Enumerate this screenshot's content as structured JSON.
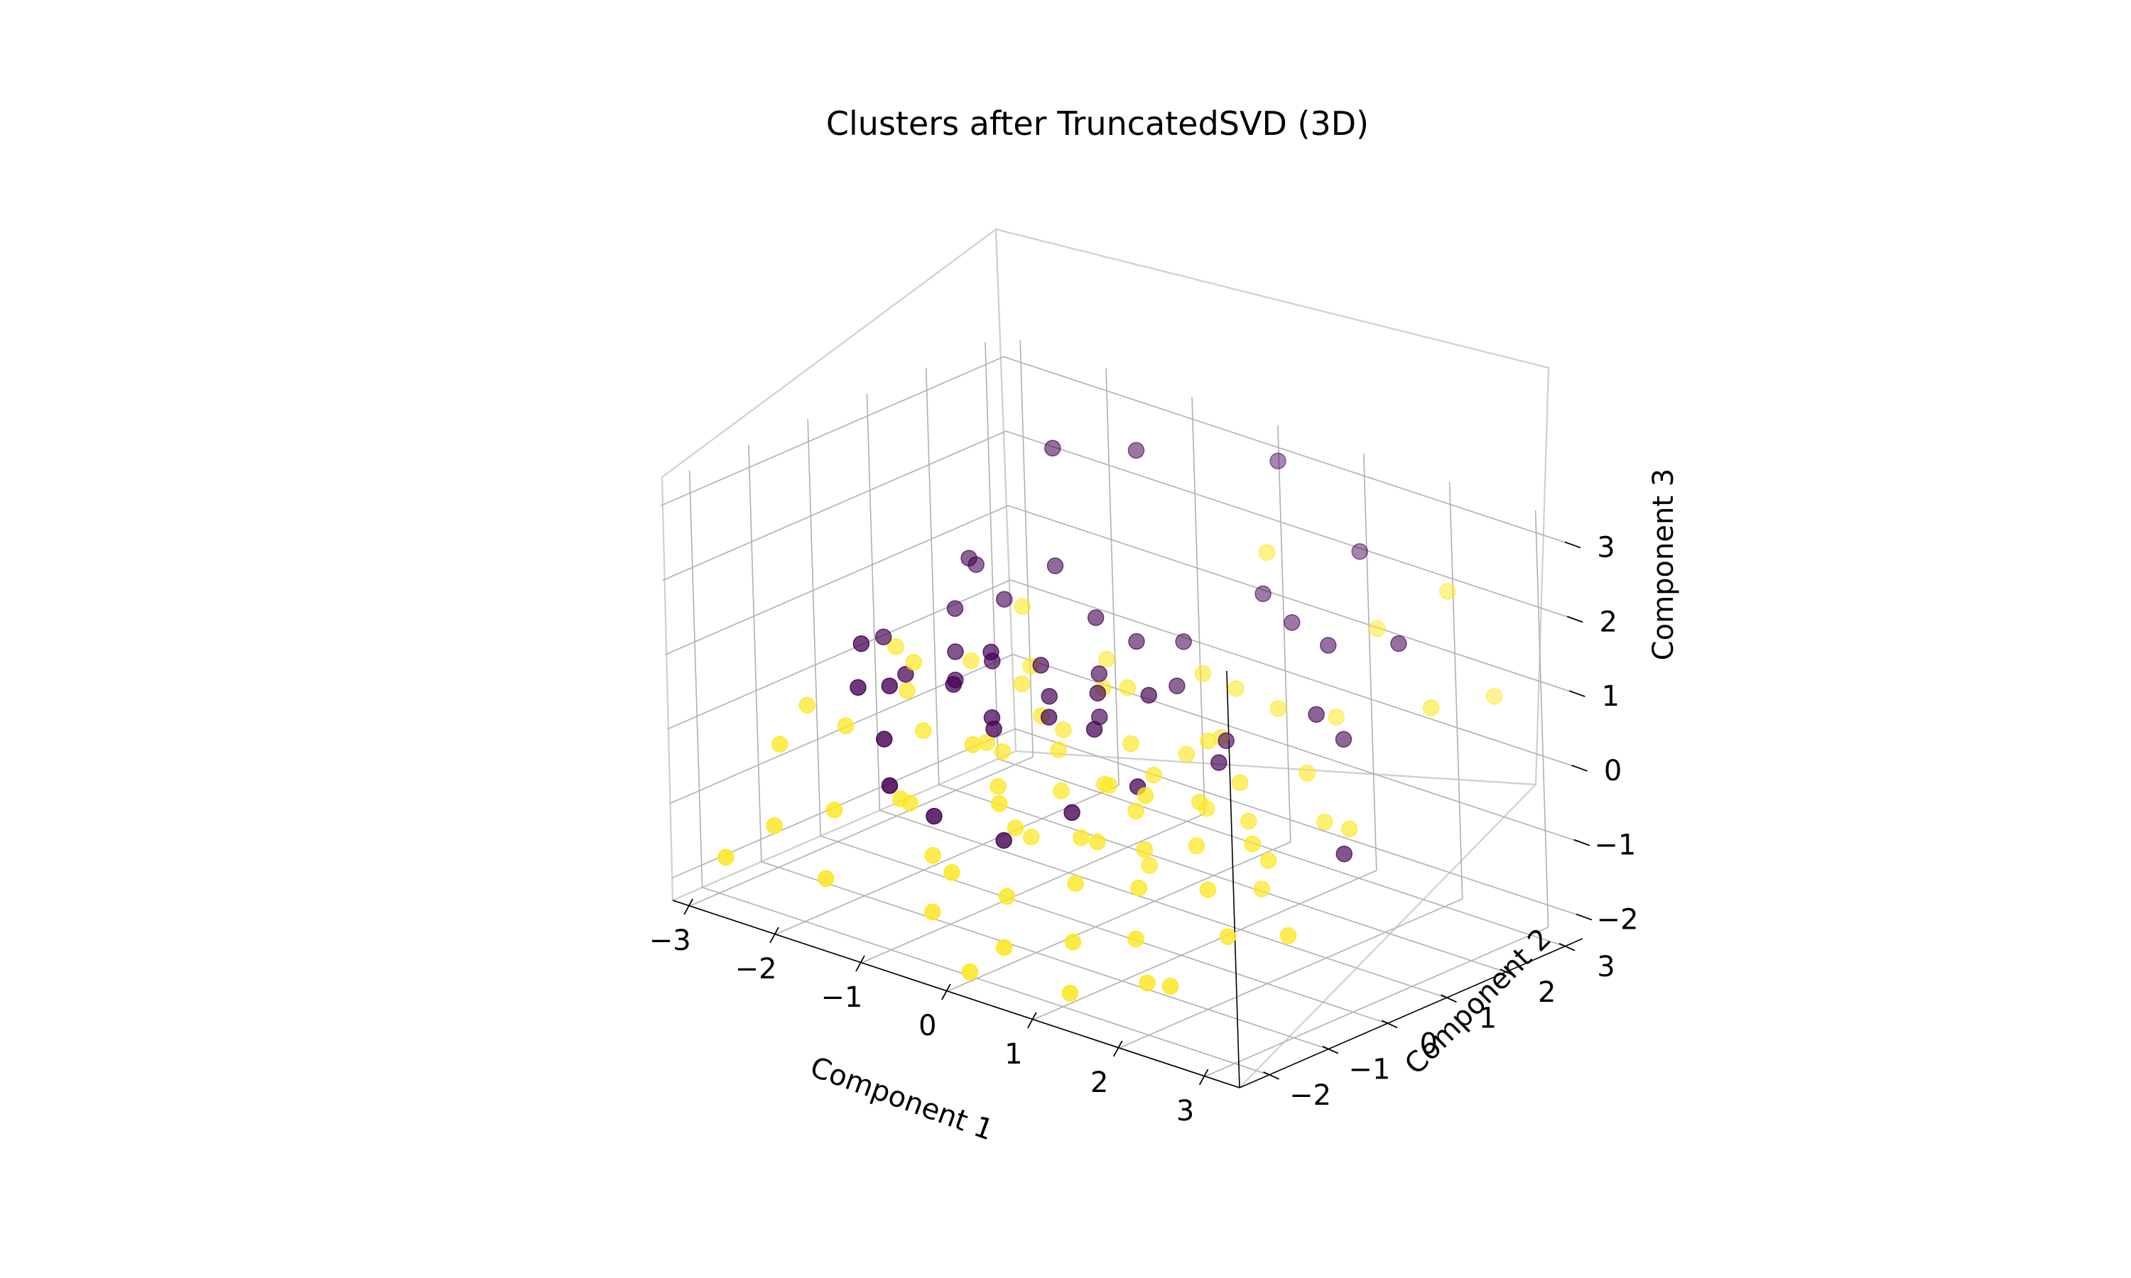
{
  "chart_data": {
    "type": "scatter",
    "title": "Clusters after TruncatedSVD (3D)",
    "xlabel": "Component 1",
    "ylabel": "Component 2",
    "zlabel": "Component 3",
    "xlim": [
      -3.2,
      3.4
    ],
    "ylim": [
      -2.5,
      3.3
    ],
    "zlim": [
      -2.3,
      3.3
    ],
    "xticks": [
      "−3",
      "−2",
      "−1",
      "0",
      "1",
      "2",
      "3"
    ],
    "yticks": [
      "−2",
      "−1",
      "0",
      "1",
      "2",
      "3"
    ],
    "zticks": [
      "−2",
      "−1",
      "0",
      "1",
      "2",
      "3"
    ],
    "grid": true,
    "legend": "none",
    "series": [
      {
        "color": "#440154",
        "points": [
          [
            -1.6,
            1.8,
            2.9
          ],
          [
            -0.9,
            2.2,
            3.0
          ],
          [
            0.2,
            3.0,
            3.0
          ],
          [
            1.2,
            2.9,
            2.2
          ],
          [
            0.8,
            2.3,
            1.3
          ],
          [
            2.0,
            1.4,
            0.5
          ],
          [
            2.6,
            0.5,
            -0.5
          ],
          [
            1.9,
            1.1,
            0.9
          ],
          [
            0.4,
            2.4,
            1.5
          ],
          [
            -0.2,
            1.9,
            0.8
          ],
          [
            -2.4,
            1.6,
            1.1
          ],
          [
            -1.8,
            1.2,
            1.0
          ],
          [
            -2.1,
            0.8,
            0.9
          ],
          [
            -1.9,
            0.5,
            0.5
          ],
          [
            -1.7,
            0.2,
            0.3
          ],
          [
            -2.0,
            -0.2,
            0.4
          ],
          [
            -1.4,
            0.4,
            0.6
          ],
          [
            -1.2,
            0.1,
            0.9
          ],
          [
            -0.9,
            0.5,
            0.7
          ],
          [
            -0.6,
            0.2,
            0.5
          ],
          [
            -1.3,
            -0.4,
            0.6
          ],
          [
            -1.0,
            -0.2,
            0.2
          ],
          [
            -0.7,
            -0.6,
            0.3
          ],
          [
            -0.4,
            -0.1,
            0.4
          ],
          [
            -0.1,
            0.3,
            0.7
          ],
          [
            0.2,
            -0.2,
            0.5
          ],
          [
            0.5,
            0.3,
            0.9
          ],
          [
            -1.7,
            -0.9,
            0.6
          ],
          [
            -2.3,
            -0.5,
            0.8
          ],
          [
            -2.0,
            -1.0,
            0.5
          ],
          [
            -1.5,
            -1.3,
            0.1
          ],
          [
            -0.8,
            -1.5,
            -0.6
          ],
          [
            -1.1,
            -1.8,
            -0.2
          ],
          [
            -0.2,
            -1.2,
            -0.8
          ],
          [
            0.4,
            -0.9,
            -0.3
          ],
          [
            0.9,
            -0.5,
            0.1
          ],
          [
            1.3,
            0.3,
            0.3
          ],
          [
            0.9,
            1.0,
            0.2
          ],
          [
            -0.5,
            0.9,
            0.6
          ],
          [
            -0.8,
            1.3,
            1.1
          ],
          [
            0.2,
            1.2,
            0.6
          ],
          [
            -0.3,
            0.6,
            0.2
          ],
          [
            1.5,
            1.9,
            1.4
          ],
          [
            2.4,
            1.8,
            1.8
          ],
          [
            -2.6,
            0.3,
            0.5
          ],
          [
            -2.2,
            1.2,
            1.4
          ],
          [
            -1.4,
            1.5,
            1.5
          ],
          [
            -0.4,
            1.4,
            0.9
          ]
        ]
      },
      {
        "color": "#fde725",
        "points": [
          [
            -3.1,
            -0.3,
            -0.4
          ],
          [
            -2.8,
            -1.2,
            -0.5
          ],
          [
            -2.6,
            0.5,
            0.3
          ],
          [
            -2.3,
            -0.8,
            -0.2
          ],
          [
            -2.2,
            0.1,
            0.0
          ],
          [
            -1.9,
            -1.6,
            -0.9
          ],
          [
            -1.6,
            -0.5,
            -0.1
          ],
          [
            -1.4,
            -1.2,
            -0.7
          ],
          [
            -1.2,
            0.6,
            0.3
          ],
          [
            -1.0,
            -0.3,
            -0.1
          ],
          [
            -0.9,
            -1.4,
            -1.2
          ],
          [
            -0.7,
            0.2,
            0.2
          ],
          [
            -0.6,
            -0.7,
            -0.4
          ],
          [
            -0.5,
            -2.0,
            -1.6
          ],
          [
            -0.3,
            -0.1,
            0.0
          ],
          [
            -0.2,
            -1.0,
            -0.7
          ],
          [
            -0.1,
            0.8,
            0.6
          ],
          [
            0.0,
            -0.5,
            -0.3
          ],
          [
            0.1,
            -1.6,
            -1.3
          ],
          [
            0.2,
            0.4,
            0.1
          ],
          [
            0.3,
            -0.2,
            -0.2
          ],
          [
            0.4,
            -2.1,
            -1.7
          ],
          [
            0.5,
            -0.9,
            -0.6
          ],
          [
            0.6,
            0.2,
            -0.1
          ],
          [
            0.7,
            -1.3,
            -1.0
          ],
          [
            0.8,
            -0.4,
            -0.3
          ],
          [
            0.9,
            0.7,
            0.3
          ],
          [
            1.0,
            -1.8,
            -1.5
          ],
          [
            1.1,
            -0.7,
            -0.6
          ],
          [
            1.2,
            0.1,
            -0.2
          ],
          [
            1.3,
            -1.1,
            -0.9
          ],
          [
            1.4,
            0.5,
            0.0
          ],
          [
            1.5,
            -0.4,
            -0.5
          ],
          [
            1.6,
            -1.6,
            -1.3
          ],
          [
            1.7,
            0.2,
            -0.3
          ],
          [
            1.9,
            -0.8,
            -0.8
          ],
          [
            2.0,
            -2.0,
            -1.6
          ],
          [
            2.2,
            -0.2,
            -0.5
          ],
          [
            2.4,
            -1.2,
            -1.1
          ],
          [
            2.6,
            0.6,
            -0.2
          ],
          [
            2.9,
            -0.9,
            -1.0
          ],
          [
            1.8,
            2.3,
            1.6
          ],
          [
            2.5,
            2.5,
            2.3
          ],
          [
            2.9,
            1.6,
            1.2
          ],
          [
            0.6,
            2.2,
            2.2
          ],
          [
            -1.8,
            1.5,
            0.8
          ],
          [
            -0.6,
            1.1,
            0.3
          ],
          [
            0.3,
            1.5,
            0.7
          ],
          [
            -1.3,
            0.9,
            0.4
          ],
          [
            0.7,
            1.2,
            0.1
          ],
          [
            1.1,
            1.6,
            0.5
          ],
          [
            -0.4,
            -1.8,
            -1.1
          ],
          [
            -1.6,
            -2.2,
            -1.5
          ],
          [
            0.2,
            -2.4,
            -2.0
          ],
          [
            1.3,
            -2.3,
            -1.9
          ],
          [
            2.2,
            -1.9,
            -1.6
          ],
          [
            -2.4,
            -1.9,
            -1.2
          ],
          [
            -0.8,
            0.7,
            -0.2
          ],
          [
            0.5,
            0.9,
            -0.1
          ],
          [
            1.7,
            1.2,
            0.0
          ],
          [
            -1.1,
            0.1,
            -0.4
          ],
          [
            0.0,
            0.3,
            -0.5
          ],
          [
            1.0,
            0.5,
            -0.5
          ],
          [
            2.1,
            0.9,
            -0.4
          ],
          [
            -1.5,
            -0.9,
            -0.9
          ],
          [
            -0.3,
            -0.6,
            -1.0
          ],
          [
            0.8,
            -0.2,
            -1.1
          ],
          [
            1.9,
            0.1,
            -1.1
          ],
          [
            -2.0,
            0.9,
            0.2
          ],
          [
            -0.9,
            1.6,
            0.4
          ],
          [
            0.4,
            1.9,
            0.4
          ],
          [
            1.5,
            2.0,
            0.4
          ],
          [
            2.8,
            2.8,
            0.9
          ],
          [
            -2.7,
            -2.3,
            -1.6
          ],
          [
            -0.1,
            -1.4,
            -0.2
          ],
          [
            1.2,
            -0.8,
            0.2
          ],
          [
            -1.9,
            -0.2,
            0.6
          ],
          [
            0.9,
            -1.2,
            -0.4
          ],
          [
            2.3,
            -0.6,
            -0.1
          ],
          [
            -0.6,
            -1.1,
            0.3
          ]
        ]
      }
    ]
  }
}
